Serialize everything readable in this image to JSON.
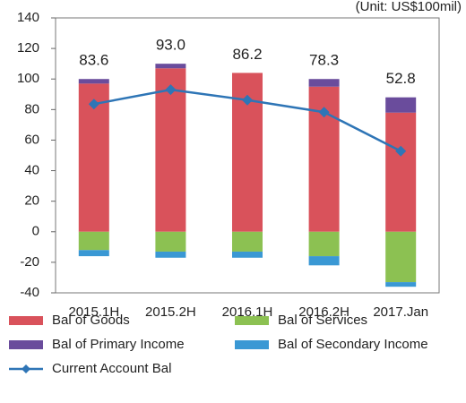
{
  "chart_data": {
    "type": "bar",
    "subtitle": "(Unit: US$100mil)",
    "categories": [
      "2015.1H",
      "2015.2H",
      "2016.1H",
      "2016.2H",
      "2017.Jan"
    ],
    "series": [
      {
        "name": "Bal of Goods",
        "type": "bar",
        "color": "#d9525b",
        "values": [
          97,
          107,
          104,
          95,
          78
        ]
      },
      {
        "name": "Bal of Services",
        "type": "bar",
        "color": "#8cc152",
        "values": [
          -12,
          -13,
          -13,
          -16,
          -33
        ]
      },
      {
        "name": "Bal of Primary Income",
        "type": "bar",
        "color": "#6a4c9c",
        "values": [
          3,
          3,
          0,
          5,
          10
        ]
      },
      {
        "name": "Bal of Secondary Income",
        "type": "bar",
        "color": "#3a98d4",
        "values": [
          -4,
          -4,
          -4,
          -6,
          -3
        ]
      },
      {
        "name": "Current Account Bal",
        "type": "line",
        "color": "#2e75b6",
        "values": [
          83.6,
          93.0,
          86.2,
          78.3,
          52.8
        ],
        "value_labels": [
          "83.6",
          "93.0",
          "86.2",
          "78.3",
          "52.8"
        ]
      }
    ],
    "ylim": [
      -40,
      140
    ],
    "yticks": [
      -40,
      -20,
      0,
      20,
      40,
      60,
      80,
      100,
      120,
      140
    ],
    "grid": false,
    "legend": "bottom"
  }
}
